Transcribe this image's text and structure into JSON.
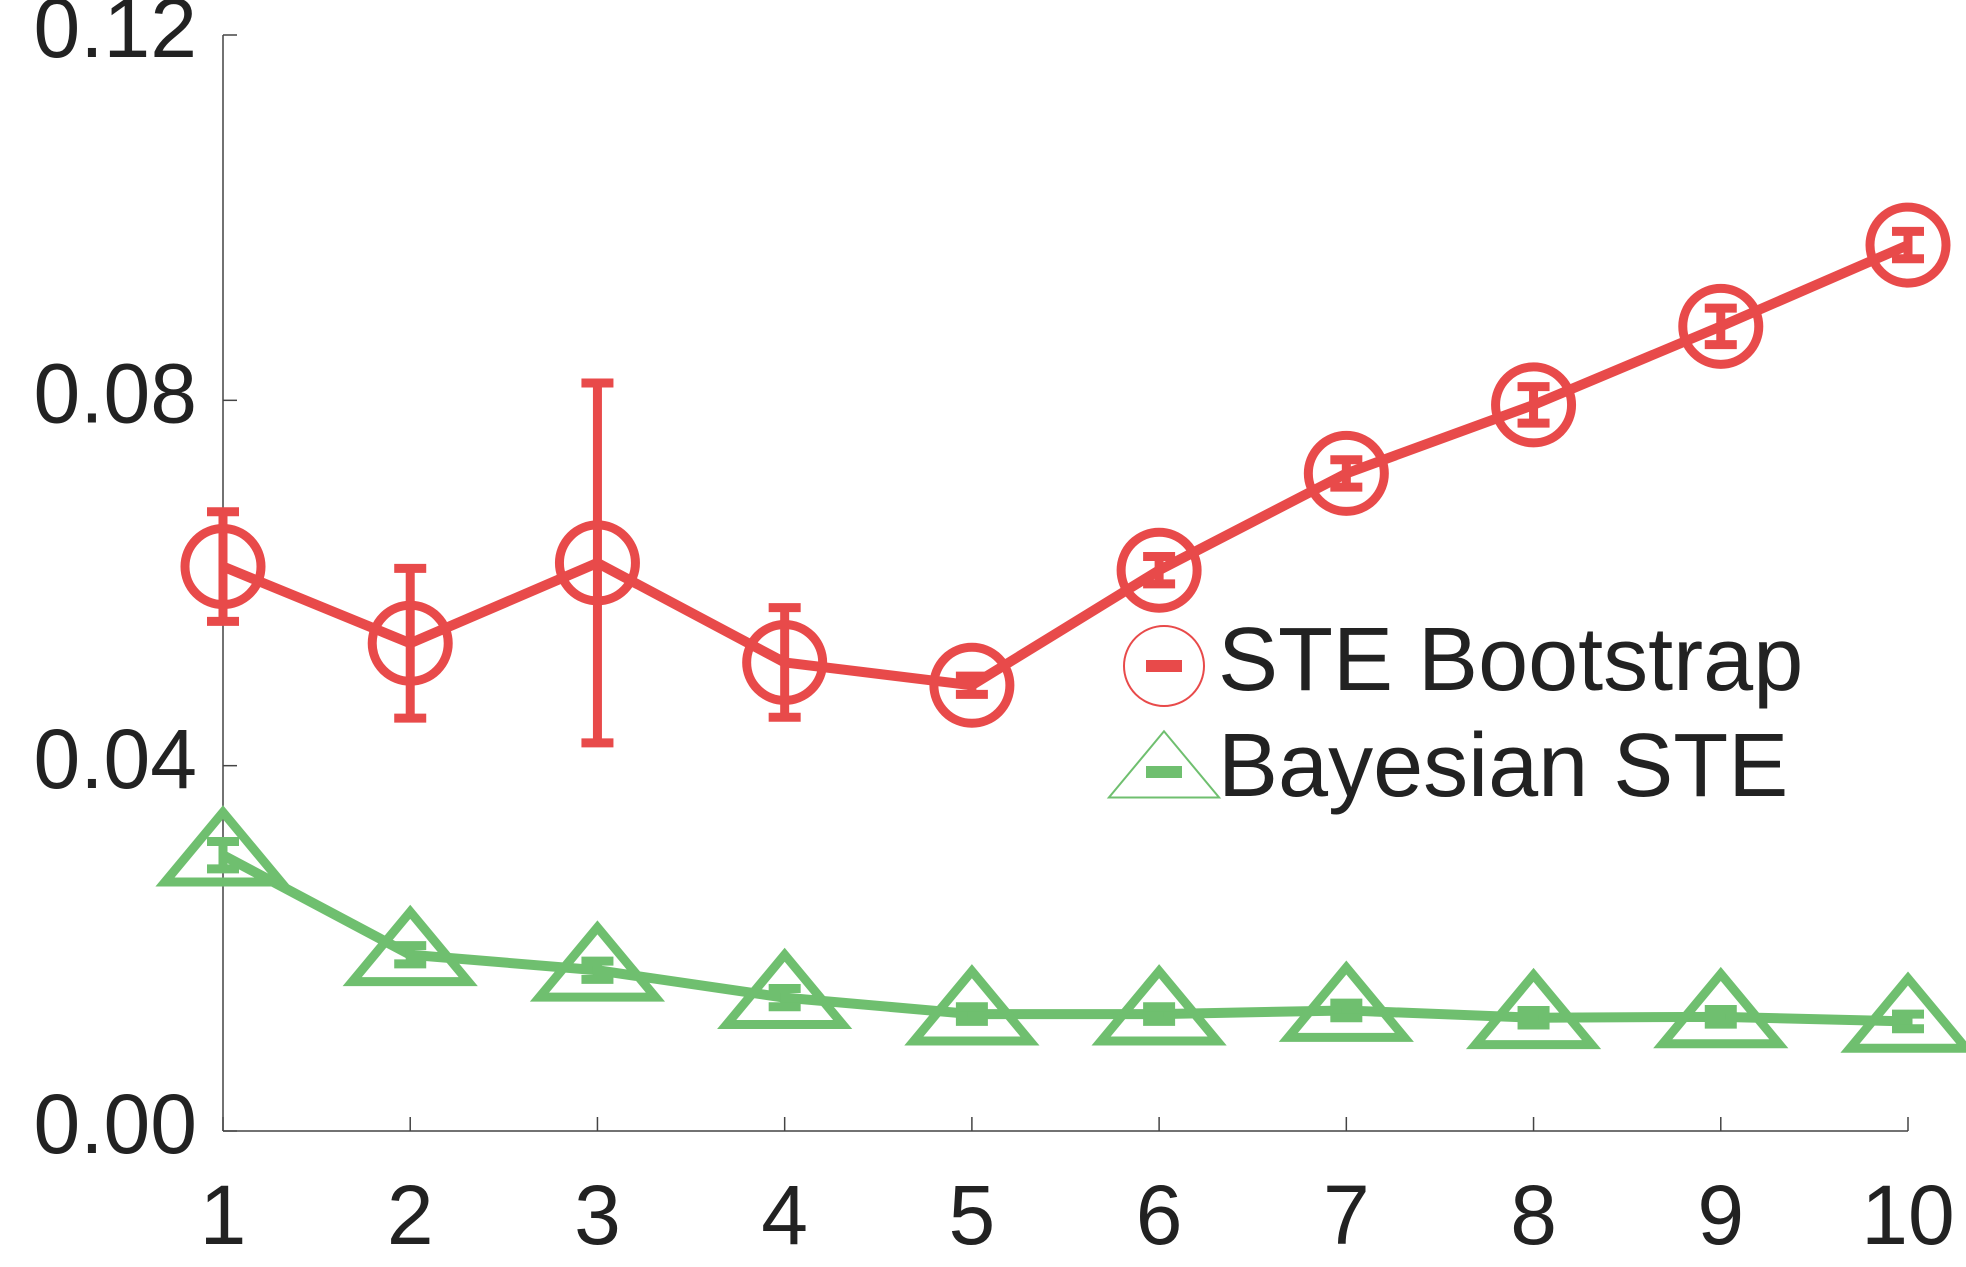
{
  "chart_data": {
    "type": "line",
    "x": [
      1,
      2,
      3,
      4,
      5,
      6,
      7,
      8,
      9,
      10
    ],
    "xlim": [
      1,
      10
    ],
    "xticks": [
      1,
      2,
      3,
      4,
      5,
      6,
      7,
      8,
      9,
      10
    ],
    "ylim": [
      0,
      0.12
    ],
    "yticks": [
      {
        "value": 0,
        "label": "0.00"
      },
      {
        "value": 0.04,
        "label": "0.04"
      },
      {
        "value": 0.08,
        "label": "0.08"
      },
      {
        "value": 0.12,
        "label": "0.12"
      }
    ],
    "series": [
      {
        "name": "STE Bootstrap",
        "color": "#e84a4a",
        "marker": "circle",
        "values": [
          0.0618,
          0.0534,
          0.0622,
          0.0513,
          0.0488,
          0.0614,
          0.072,
          0.0795,
          0.0881,
          0.097
        ],
        "errors": [
          0.006,
          0.0082,
          0.0197,
          0.006,
          0.001,
          0.0015,
          0.0015,
          0.002,
          0.002,
          0.0015
        ]
      },
      {
        "name": "Bayesian STE",
        "color": "#6fbf6f",
        "marker": "triangle",
        "values": [
          0.0302,
          0.0193,
          0.0176,
          0.0146,
          0.0128,
          0.0128,
          0.0132,
          0.0124,
          0.0125,
          0.012
        ],
        "errors": [
          0.0015,
          0.001,
          0.001,
          0.001,
          0.0008,
          0.0008,
          0.0008,
          0.0008,
          0.0008,
          0.0008
        ]
      }
    ]
  }
}
